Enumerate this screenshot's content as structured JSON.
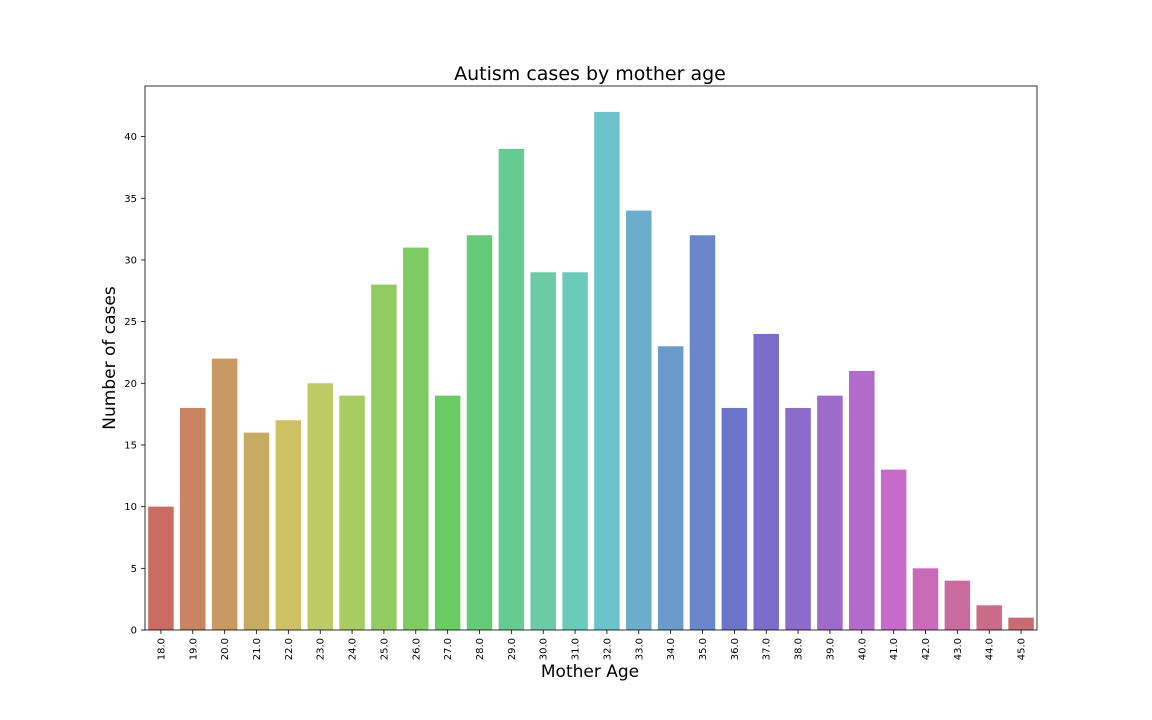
{
  "chart_data": {
    "type": "bar",
    "title": "Autism cases by mother age",
    "xlabel": "Mother Age",
    "ylabel": "Number of cases",
    "categories": [
      "18.0",
      "19.0",
      "20.0",
      "21.0",
      "22.0",
      "23.0",
      "24.0",
      "25.0",
      "26.0",
      "27.0",
      "28.0",
      "29.0",
      "30.0",
      "31.0",
      "32.0",
      "33.0",
      "34.0",
      "35.0",
      "36.0",
      "37.0",
      "38.0",
      "39.0",
      "40.0",
      "41.0",
      "42.0",
      "43.0",
      "44.0",
      "45.0"
    ],
    "values": [
      10,
      18,
      22,
      16,
      17,
      20,
      19,
      28,
      31,
      19,
      32,
      39,
      29,
      29,
      42,
      34,
      23,
      32,
      18,
      24,
      18,
      19,
      21,
      13,
      5,
      4,
      2,
      1
    ],
    "colors": [
      "#c96c63",
      "#c98463",
      "#c99963",
      "#c8ab63",
      "#cec163",
      "#bccb63",
      "#a8cb63",
      "#93cb63",
      "#7fcb63",
      "#6bcb63",
      "#66cb79",
      "#66cb91",
      "#6bcba7",
      "#6bcbbb",
      "#6bc4cb",
      "#6badcb",
      "#6b9bcb",
      "#6b87cb",
      "#6b73cb",
      "#7b6bcb",
      "#8b6bcb",
      "#9f6bcb",
      "#b36bcb",
      "#c76bcb",
      "#c96bb9",
      "#c96b9f",
      "#c96b89",
      "#c96b73"
    ],
    "ylim": [
      0,
      44.1
    ],
    "yticks": [
      0,
      5,
      10,
      15,
      20,
      25,
      30,
      35,
      40
    ],
    "grid": false,
    "legend": "none"
  }
}
